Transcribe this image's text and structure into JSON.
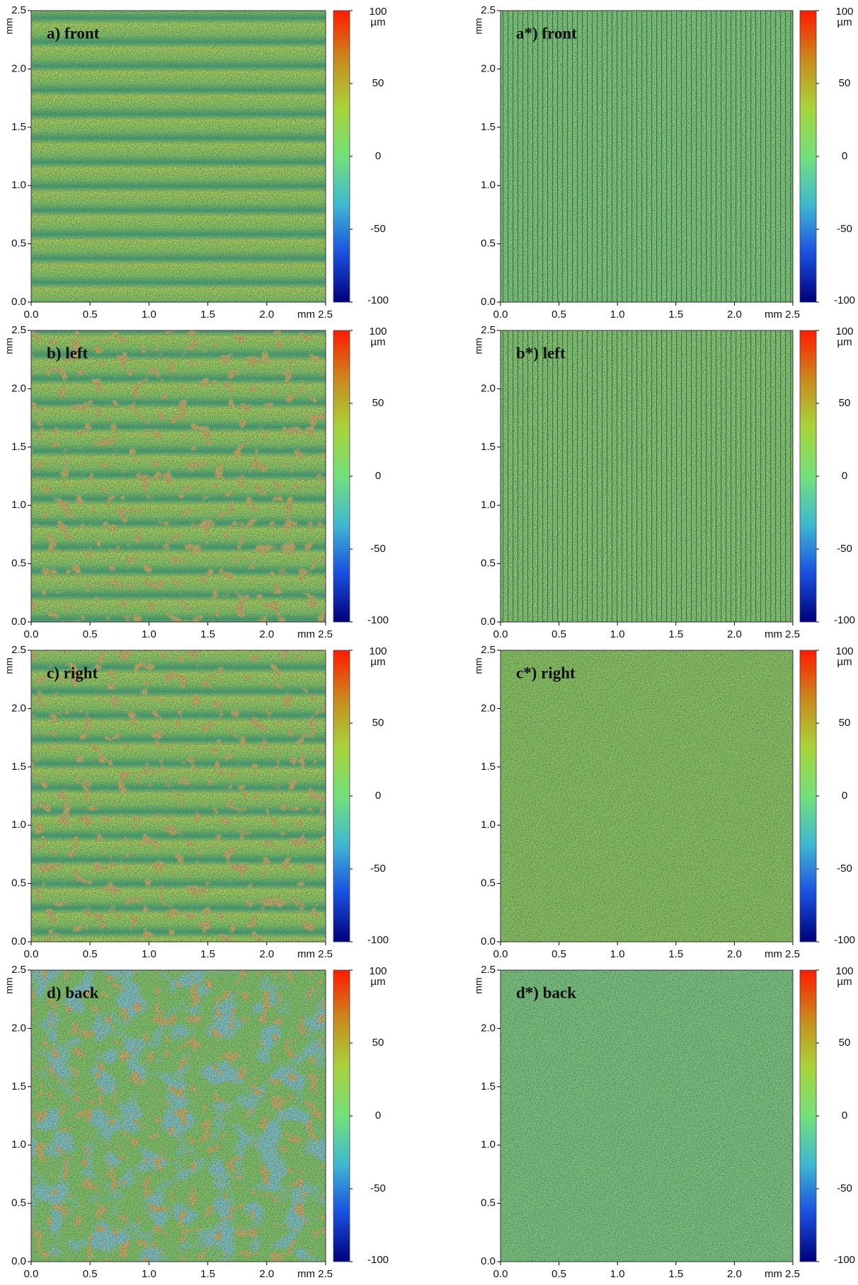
{
  "chart_data": [
    {
      "type": "heatmap",
      "title": "a) front",
      "ylabel": "mm",
      "clabel": "µm",
      "xlim": [
        0,
        2.5
      ],
      "ylim": [
        0,
        2.5
      ],
      "clim": [
        -100,
        100
      ],
      "xticks": [
        {
          "value": 0,
          "label": "0.0"
        },
        0.5,
        {
          "value": 1,
          "label": "1.0"
        },
        1.5,
        {
          "value": 2,
          "label": "2.0"
        },
        {
          "value": 2.5,
          "label": "mm 2.5"
        }
      ],
      "yticks": [
        {
          "value": 0,
          "label": "0.0"
        },
        0.5,
        {
          "value": 1,
          "label": "1.0"
        },
        1.5,
        {
          "value": 2,
          "label": "2.0"
        },
        2.5
      ],
      "cticks": [
        100,
        50,
        0,
        -50,
        -100
      ],
      "colormap": [
        "#00007a",
        "#1a4fe0",
        "#3fb8d0",
        "#74e07a",
        "#a8d43c",
        "#c88a1e",
        "#ff1a00"
      ]
    },
    {
      "type": "heatmap",
      "title": "a*) front",
      "ylabel": "mm",
      "clabel": "µm",
      "xlim": [
        0,
        2.5
      ],
      "ylim": [
        0,
        2.5
      ],
      "clim": [
        -100,
        100
      ],
      "xticks": [
        {
          "value": 0,
          "label": "0.0"
        },
        0.5,
        {
          "value": 1,
          "label": "1.0"
        },
        1.5,
        {
          "value": 2,
          "label": "2.0"
        },
        {
          "value": 2.5,
          "label": "mm 2.5"
        }
      ],
      "yticks": [
        {
          "value": 0,
          "label": "0.0"
        },
        0.5,
        {
          "value": 1,
          "label": "1.0"
        },
        1.5,
        {
          "value": 2,
          "label": "2.0"
        },
        2.5
      ],
      "cticks": [
        100,
        50,
        0,
        -50,
        -100
      ],
      "colormap": [
        "#00007a",
        "#1a4fe0",
        "#3fb8d0",
        "#74e07a",
        "#a8d43c",
        "#c88a1e",
        "#ff1a00"
      ]
    },
    {
      "type": "heatmap",
      "title": "b) left",
      "ylabel": "mm",
      "clabel": "µm",
      "xlim": [
        0,
        2.5
      ],
      "ylim": [
        0,
        2.5
      ],
      "clim": [
        -100,
        100
      ],
      "xticks": [
        {
          "value": 0,
          "label": "0.0"
        },
        0.5,
        {
          "value": 1,
          "label": "1.0"
        },
        1.5,
        {
          "value": 2,
          "label": "2.0"
        },
        {
          "value": 2.5,
          "label": "mm 2.5"
        }
      ],
      "yticks": [
        {
          "value": 0,
          "label": "0.0"
        },
        0.5,
        {
          "value": 1,
          "label": "1.0"
        },
        1.5,
        {
          "value": 2,
          "label": "2.0"
        },
        2.5
      ],
      "cticks": [
        100,
        50,
        0,
        -50,
        -100
      ],
      "colormap": [
        "#00007a",
        "#1a4fe0",
        "#3fb8d0",
        "#74e07a",
        "#a8d43c",
        "#c88a1e",
        "#ff1a00"
      ]
    },
    {
      "type": "heatmap",
      "title": "b*) left",
      "ylabel": "mm",
      "clabel": "µm",
      "xlim": [
        0,
        2.5
      ],
      "ylim": [
        0,
        2.5
      ],
      "clim": [
        -100,
        100
      ],
      "xticks": [
        {
          "value": 0,
          "label": "0.0"
        },
        0.5,
        {
          "value": 1,
          "label": "1.0"
        },
        1.5,
        {
          "value": 2,
          "label": "2.0"
        },
        {
          "value": 2.5,
          "label": "mm 2.5"
        }
      ],
      "yticks": [
        {
          "value": 0,
          "label": "0.0"
        },
        0.5,
        {
          "value": 1,
          "label": "1.0"
        },
        1.5,
        {
          "value": 2,
          "label": "2.0"
        },
        2.5
      ],
      "cticks": [
        100,
        50,
        0,
        -50,
        -100
      ],
      "colormap": [
        "#00007a",
        "#1a4fe0",
        "#3fb8d0",
        "#74e07a",
        "#a8d43c",
        "#c88a1e",
        "#ff1a00"
      ]
    },
    {
      "type": "heatmap",
      "title": "c) right",
      "ylabel": "mm",
      "clabel": "µm",
      "xlim": [
        0,
        2.5
      ],
      "ylim": [
        0,
        2.5
      ],
      "clim": [
        -100,
        100
      ],
      "xticks": [
        {
          "value": 0,
          "label": "0.0"
        },
        0.5,
        {
          "value": 1,
          "label": "1.0"
        },
        1.5,
        {
          "value": 2,
          "label": "2.0"
        },
        {
          "value": 2.5,
          "label": "mm 2.5"
        }
      ],
      "yticks": [
        {
          "value": 0,
          "label": "0.0"
        },
        0.5,
        {
          "value": 1,
          "label": "1.0"
        },
        1.5,
        {
          "value": 2,
          "label": "2.0"
        },
        2.5
      ],
      "cticks": [
        100,
        50,
        0,
        -50,
        -100
      ],
      "colormap": [
        "#00007a",
        "#1a4fe0",
        "#3fb8d0",
        "#74e07a",
        "#a8d43c",
        "#c88a1e",
        "#ff1a00"
      ]
    },
    {
      "type": "heatmap",
      "title": "c*) right",
      "ylabel": "mm",
      "clabel": "µm",
      "xlim": [
        0,
        2.5
      ],
      "ylim": [
        0,
        2.5
      ],
      "clim": [
        -100,
        100
      ],
      "xticks": [
        {
          "value": 0,
          "label": "0.0"
        },
        0.5,
        {
          "value": 1,
          "label": "1.0"
        },
        1.5,
        {
          "value": 2,
          "label": "2.0"
        },
        {
          "value": 2.5,
          "label": "mm 2.5"
        }
      ],
      "yticks": [
        {
          "value": 0,
          "label": "0.0"
        },
        0.5,
        {
          "value": 1,
          "label": "1.0"
        },
        1.5,
        {
          "value": 2,
          "label": "2.0"
        },
        2.5
      ],
      "cticks": [
        100,
        50,
        0,
        -50,
        -100
      ],
      "colormap": [
        "#00007a",
        "#1a4fe0",
        "#3fb8d0",
        "#74e07a",
        "#a8d43c",
        "#c88a1e",
        "#ff1a00"
      ]
    },
    {
      "type": "heatmap",
      "title": "d) back",
      "ylabel": "mm",
      "clabel": "µm",
      "xlim": [
        0,
        2.5
      ],
      "ylim": [
        0,
        2.5
      ],
      "clim": [
        -100,
        100
      ],
      "xticks": [
        {
          "value": 0,
          "label": "0.0"
        },
        0.5,
        {
          "value": 1,
          "label": "1.0"
        },
        1.5,
        {
          "value": 2,
          "label": "2.0"
        },
        {
          "value": 2.5,
          "label": "mm 2.5"
        }
      ],
      "yticks": [
        {
          "value": 0,
          "label": "0.0"
        },
        0.5,
        {
          "value": 1,
          "label": "1.0"
        },
        1.5,
        {
          "value": 2,
          "label": "2.0"
        },
        2.5
      ],
      "cticks": [
        100,
        50,
        0,
        -50,
        -100
      ],
      "colormap": [
        "#00007a",
        "#1a4fe0",
        "#3fb8d0",
        "#74e07a",
        "#a8d43c",
        "#c88a1e",
        "#ff1a00"
      ]
    },
    {
      "type": "heatmap",
      "title": "d*) back",
      "ylabel": "mm",
      "clabel": "µm",
      "xlim": [
        0,
        2.5
      ],
      "ylim": [
        0,
        2.5
      ],
      "clim": [
        -100,
        100
      ],
      "xticks": [
        {
          "value": 0,
          "label": "0.0"
        },
        0.5,
        {
          "value": 1,
          "label": "1.0"
        },
        1.5,
        {
          "value": 2,
          "label": "2.0"
        },
        {
          "value": 2.5,
          "label": "mm 2.5"
        }
      ],
      "yticks": [
        {
          "value": 0,
          "label": "0.0"
        },
        0.5,
        {
          "value": 1,
          "label": "1.0"
        },
        1.5,
        {
          "value": 2,
          "label": "2.0"
        },
        2.5
      ],
      "cticks": [
        100,
        50,
        0,
        -50,
        -100
      ],
      "colormap": [
        "#00007a",
        "#1a4fe0",
        "#3fb8d0",
        "#74e07a",
        "#a8d43c",
        "#c88a1e",
        "#ff1a00"
      ]
    }
  ]
}
